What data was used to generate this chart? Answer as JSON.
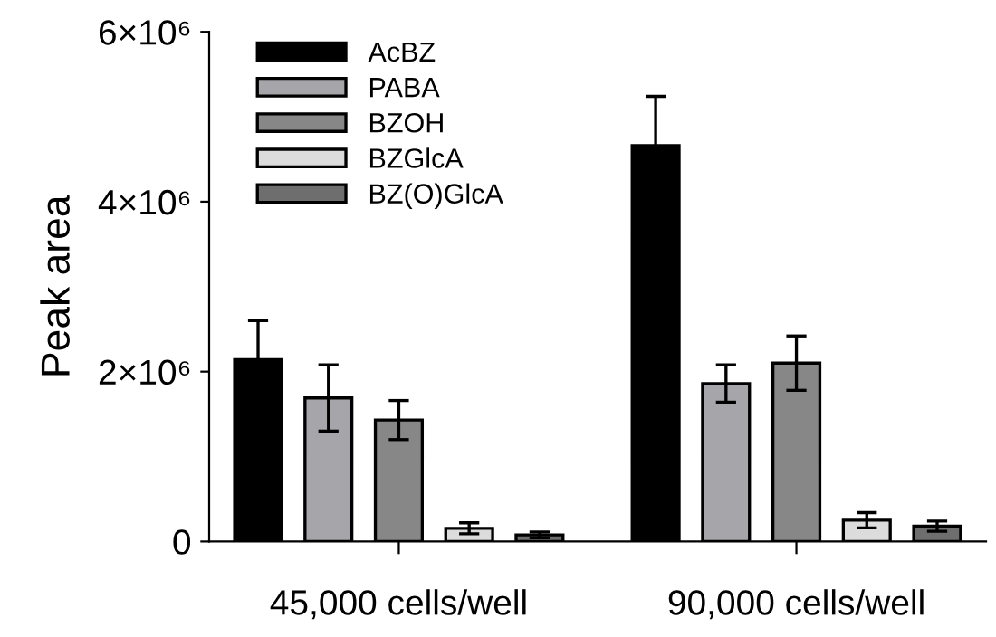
{
  "chart_data": {
    "type": "bar",
    "ylabel": "Peak area",
    "categories": [
      "45,000 cells/well",
      "90,000 cells/well"
    ],
    "series": [
      {
        "name": "AcBZ",
        "color": "#000000",
        "values": [
          2140000,
          4660000
        ],
        "errors": [
          460000,
          580000
        ]
      },
      {
        "name": "PABA",
        "color": "#a6a6aa",
        "values": [
          1690000,
          1860000
        ],
        "errors": [
          390000,
          220000
        ]
      },
      {
        "name": "BZOH",
        "color": "#878787",
        "values": [
          1430000,
          2100000
        ],
        "errors": [
          230000,
          320000
        ]
      },
      {
        "name": "BZGlcA",
        "color": "#dcdcdc",
        "values": [
          155000,
          250000
        ],
        "errors": [
          65000,
          90000
        ]
      },
      {
        "name": "BZ(O)GlcA",
        "color": "#6e6e6e",
        "values": [
          78000,
          180000
        ],
        "errors": [
          35000,
          60000
        ]
      }
    ],
    "ylim": [
      0,
      6000000
    ],
    "yticks": [
      0,
      {
        "value": 2000000,
        "label": "2×10⁶"
      },
      {
        "value": 4000000,
        "label": "4×10⁶"
      },
      {
        "value": 6000000,
        "label": "6×10⁶"
      }
    ],
    "legend": "top left",
    "grid": false
  }
}
